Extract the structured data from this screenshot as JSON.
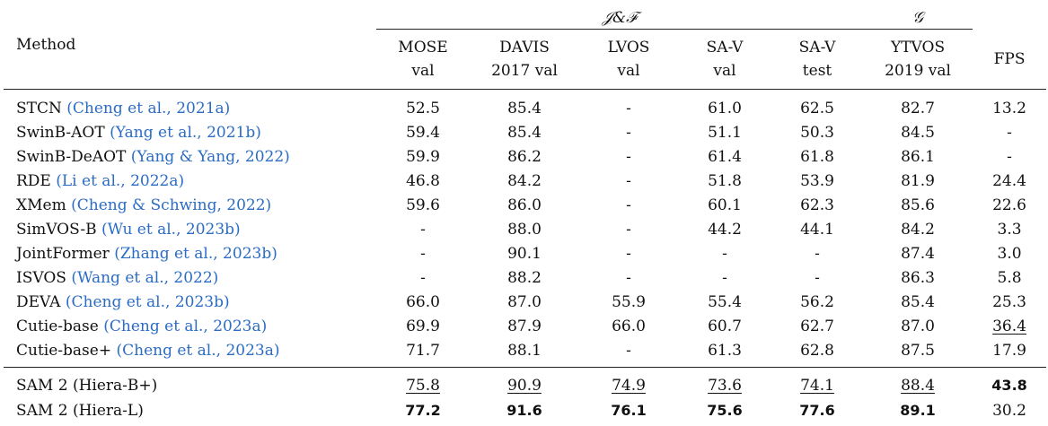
{
  "group_headers": {
    "jf": "𝒥&ℱ",
    "g": "𝒢"
  },
  "columns": {
    "method": "Method",
    "mose": [
      "MOSE",
      "val"
    ],
    "davis": [
      "DAVIS",
      "2017 val"
    ],
    "lvos": [
      "LVOS",
      "val"
    ],
    "sav_val": [
      "SA-V",
      "val"
    ],
    "sav_test": [
      "SA-V",
      "test"
    ],
    "ytvos": [
      "YTVOS",
      "2019 val"
    ],
    "fps": "FPS"
  },
  "baselines": [
    {
      "name": "STCN",
      "cite": "(Cheng et al., 2021a)",
      "values": [
        "52.5",
        "85.4",
        "-",
        "61.0",
        "62.5",
        "82.7",
        "13.2"
      ]
    },
    {
      "name": "SwinB-AOT",
      "cite": "(Yang et al., 2021b)",
      "values": [
        "59.4",
        "85.4",
        "-",
        "51.1",
        "50.3",
        "84.5",
        "-"
      ]
    },
    {
      "name": "SwinB-DeAOT",
      "cite": "(Yang & Yang, 2022)",
      "values": [
        "59.9",
        "86.2",
        "-",
        "61.4",
        "61.8",
        "86.1",
        "-"
      ]
    },
    {
      "name": "RDE",
      "cite": "(Li et al., 2022a)",
      "values": [
        "46.8",
        "84.2",
        "-",
        "51.8",
        "53.9",
        "81.9",
        "24.4"
      ]
    },
    {
      "name": "XMem",
      "cite": "(Cheng & Schwing, 2022)",
      "values": [
        "59.6",
        "86.0",
        "-",
        "60.1",
        "62.3",
        "85.6",
        "22.6"
      ]
    },
    {
      "name": "SimVOS-B",
      "cite": "(Wu et al., 2023b)",
      "values": [
        "-",
        "88.0",
        "-",
        "44.2",
        "44.1",
        "84.2",
        "3.3"
      ]
    },
    {
      "name": "JointFormer",
      "cite": "(Zhang et al., 2023b)",
      "values": [
        "-",
        "90.1",
        "-",
        "-",
        "-",
        "87.4",
        "3.0"
      ]
    },
    {
      "name": "ISVOS",
      "cite": "(Wang et al., 2022)",
      "values": [
        "-",
        "88.2",
        "-",
        "-",
        "-",
        "86.3",
        "5.8"
      ]
    },
    {
      "name": "DEVA",
      "cite": "(Cheng et al., 2023b)",
      "values": [
        "66.0",
        "87.0",
        "55.9",
        "55.4",
        "56.2",
        "85.4",
        "25.3"
      ]
    },
    {
      "name": "Cutie-base",
      "cite": "(Cheng et al., 2023a)",
      "values": [
        "69.9",
        "87.9",
        "66.0",
        "60.7",
        "62.7",
        "87.0",
        "36.4"
      ],
      "underline": [
        6
      ]
    },
    {
      "name": "Cutie-base+",
      "cite": "(Cheng et al., 2023a)",
      "values": [
        "71.7",
        "88.1",
        "-",
        "61.3",
        "62.8",
        "87.5",
        "17.9"
      ]
    }
  ],
  "sam2": [
    {
      "name": "SAM 2 (Hiera-B+)",
      "values": [
        "75.8",
        "90.9",
        "74.9",
        "73.6",
        "74.1",
        "88.4",
        "43.8"
      ],
      "underline": [
        0,
        1,
        2,
        3,
        4,
        5
      ],
      "bold": [
        6
      ]
    },
    {
      "name": "SAM 2 (Hiera-L)",
      "values": [
        "77.2",
        "91.6",
        "76.1",
        "75.6",
        "77.6",
        "89.1",
        "30.2"
      ],
      "underline": [],
      "bold": [
        0,
        1,
        2,
        3,
        4,
        5
      ]
    }
  ]
}
